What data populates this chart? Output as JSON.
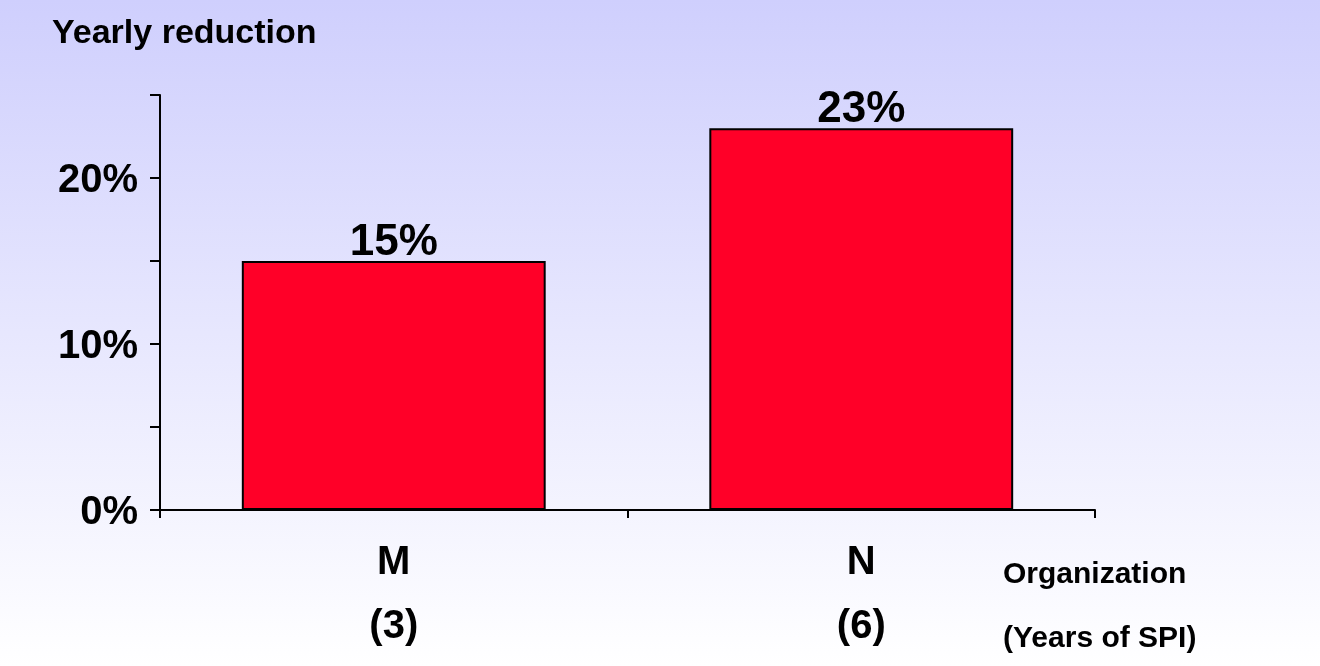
{
  "chart_data": {
    "type": "bar",
    "ylabel": "Yearly reduction",
    "xlabel": "Organization\n(Years of SPI)",
    "categories": [
      "M\n(3)",
      "N\n(6)"
    ],
    "values": [
      15,
      23
    ],
    "value_labels": [
      "15%",
      "23%"
    ],
    "color": "#ff0028",
    "ylim": [
      0,
      25
    ],
    "yticks": [
      {
        "value": 0,
        "label": "0%"
      },
      {
        "value": 5,
        "label": null
      },
      {
        "value": 10,
        "label": "10%"
      },
      {
        "value": 15,
        "label": null
      },
      {
        "value": 20,
        "label": "20%"
      },
      {
        "value": 25,
        "label": null
      }
    ],
    "grid": false
  }
}
